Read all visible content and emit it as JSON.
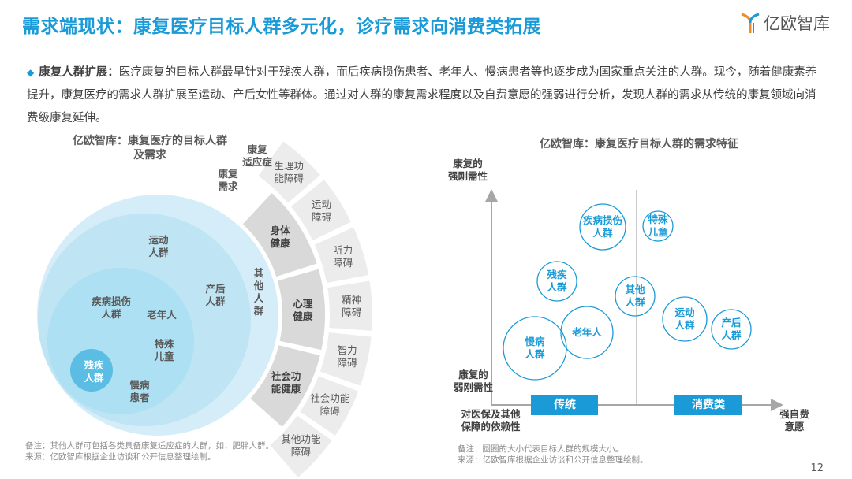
{
  "header": {
    "title": "需求端现状：康复医疗目标人群多元化，诊疗需求向消费类拓展",
    "logo_text": "亿欧智库"
  },
  "intro": {
    "heading": "康复人群扩展：",
    "text": "医疗康复的目标人群最早针对于残疾人群，而后疾病损伤患者、老年人、慢病患者等也逐步成为国家重点关注的人群。现今，随着健康素养提升，康复医疗的需求人群扩展至运动、产后女性等群体。通过对人群的康复需求程度以及自费意愿的强弱进行分析，发现人群的需求从传统的康复领域向消费级康复延伸。"
  },
  "left": {
    "title_line1": "亿欧智库：康复医疗的目标人群",
    "title_line2": "及需求",
    "ring_header_needs": [
      "康复",
      "需求"
    ],
    "ring_header_indications": [
      "康复",
      "适应症"
    ],
    "groups": {
      "sport": [
        "运动",
        "人群"
      ],
      "postpartum": [
        "产后",
        "人群"
      ],
      "disease": [
        "疾病损伤",
        "人群"
      ],
      "elderly": "老年人",
      "children": [
        "特殊",
        "儿童"
      ],
      "disabled": [
        "残疾",
        "人群"
      ],
      "chronic": [
        "慢病",
        "患者"
      ],
      "other": [
        "其",
        "他",
        "人",
        "群"
      ]
    },
    "needs": [
      [
        "身体",
        "健康"
      ],
      [
        "心理",
        "健康"
      ],
      [
        "社会功",
        "能健康"
      ]
    ],
    "indications": [
      [
        "生理功",
        "能障碍"
      ],
      [
        "运动",
        "障碍"
      ],
      [
        "听力",
        "障碍"
      ],
      [
        "精神",
        "障碍"
      ],
      [
        "智力",
        "障碍"
      ],
      [
        "社会功能",
        "障碍"
      ],
      [
        "其他功能",
        "障碍"
      ]
    ],
    "note": "备注：其他人群可包括各类具备康复适应症的人群，如：肥胖人群。",
    "source": "来源：亿欧智库根据企业访谈和公开信息整理绘制。"
  },
  "right": {
    "title": "亿欧智库：康复医疗目标人群的需求特征",
    "y_top": [
      "康复的",
      "强刚需性"
    ],
    "y_bottom": [
      "康复的",
      "弱刚需性"
    ],
    "x_left": [
      "对医保及其他",
      "保障的依赖性"
    ],
    "x_right": [
      "强自费",
      "意愿"
    ],
    "zone_traditional": "传统",
    "zone_consumer": "消费类",
    "bubbles": [
      {
        "label": [
          "疾病损伤",
          "人群"
        ]
      },
      {
        "label": [
          "特殊",
          "儿童"
        ]
      },
      {
        "label": [
          "残疾",
          "人群"
        ]
      },
      {
        "label": [
          "其他",
          "人群"
        ]
      },
      {
        "label": [
          "老年人"
        ]
      },
      {
        "label": [
          "慢病",
          "人群"
        ]
      },
      {
        "label": [
          "运动",
          "人群"
        ]
      },
      {
        "label": [
          "产后",
          "人群"
        ]
      }
    ],
    "note": "备注：圆圈的大小代表目标人群的规模大小。",
    "source": "来源：亿欧智库根据企业访谈和公开信息整理绘制。"
  },
  "colors": {
    "accent": "#1a9bd7",
    "circle_outer": "#d4edf8",
    "circle_mid": "#bfe5f4",
    "circle_inner": "#ade0f2",
    "disabled": "#5bbde3",
    "ring_mid": "#d9d9d9",
    "ring_outer": "#ececec"
  },
  "page_number": "12"
}
